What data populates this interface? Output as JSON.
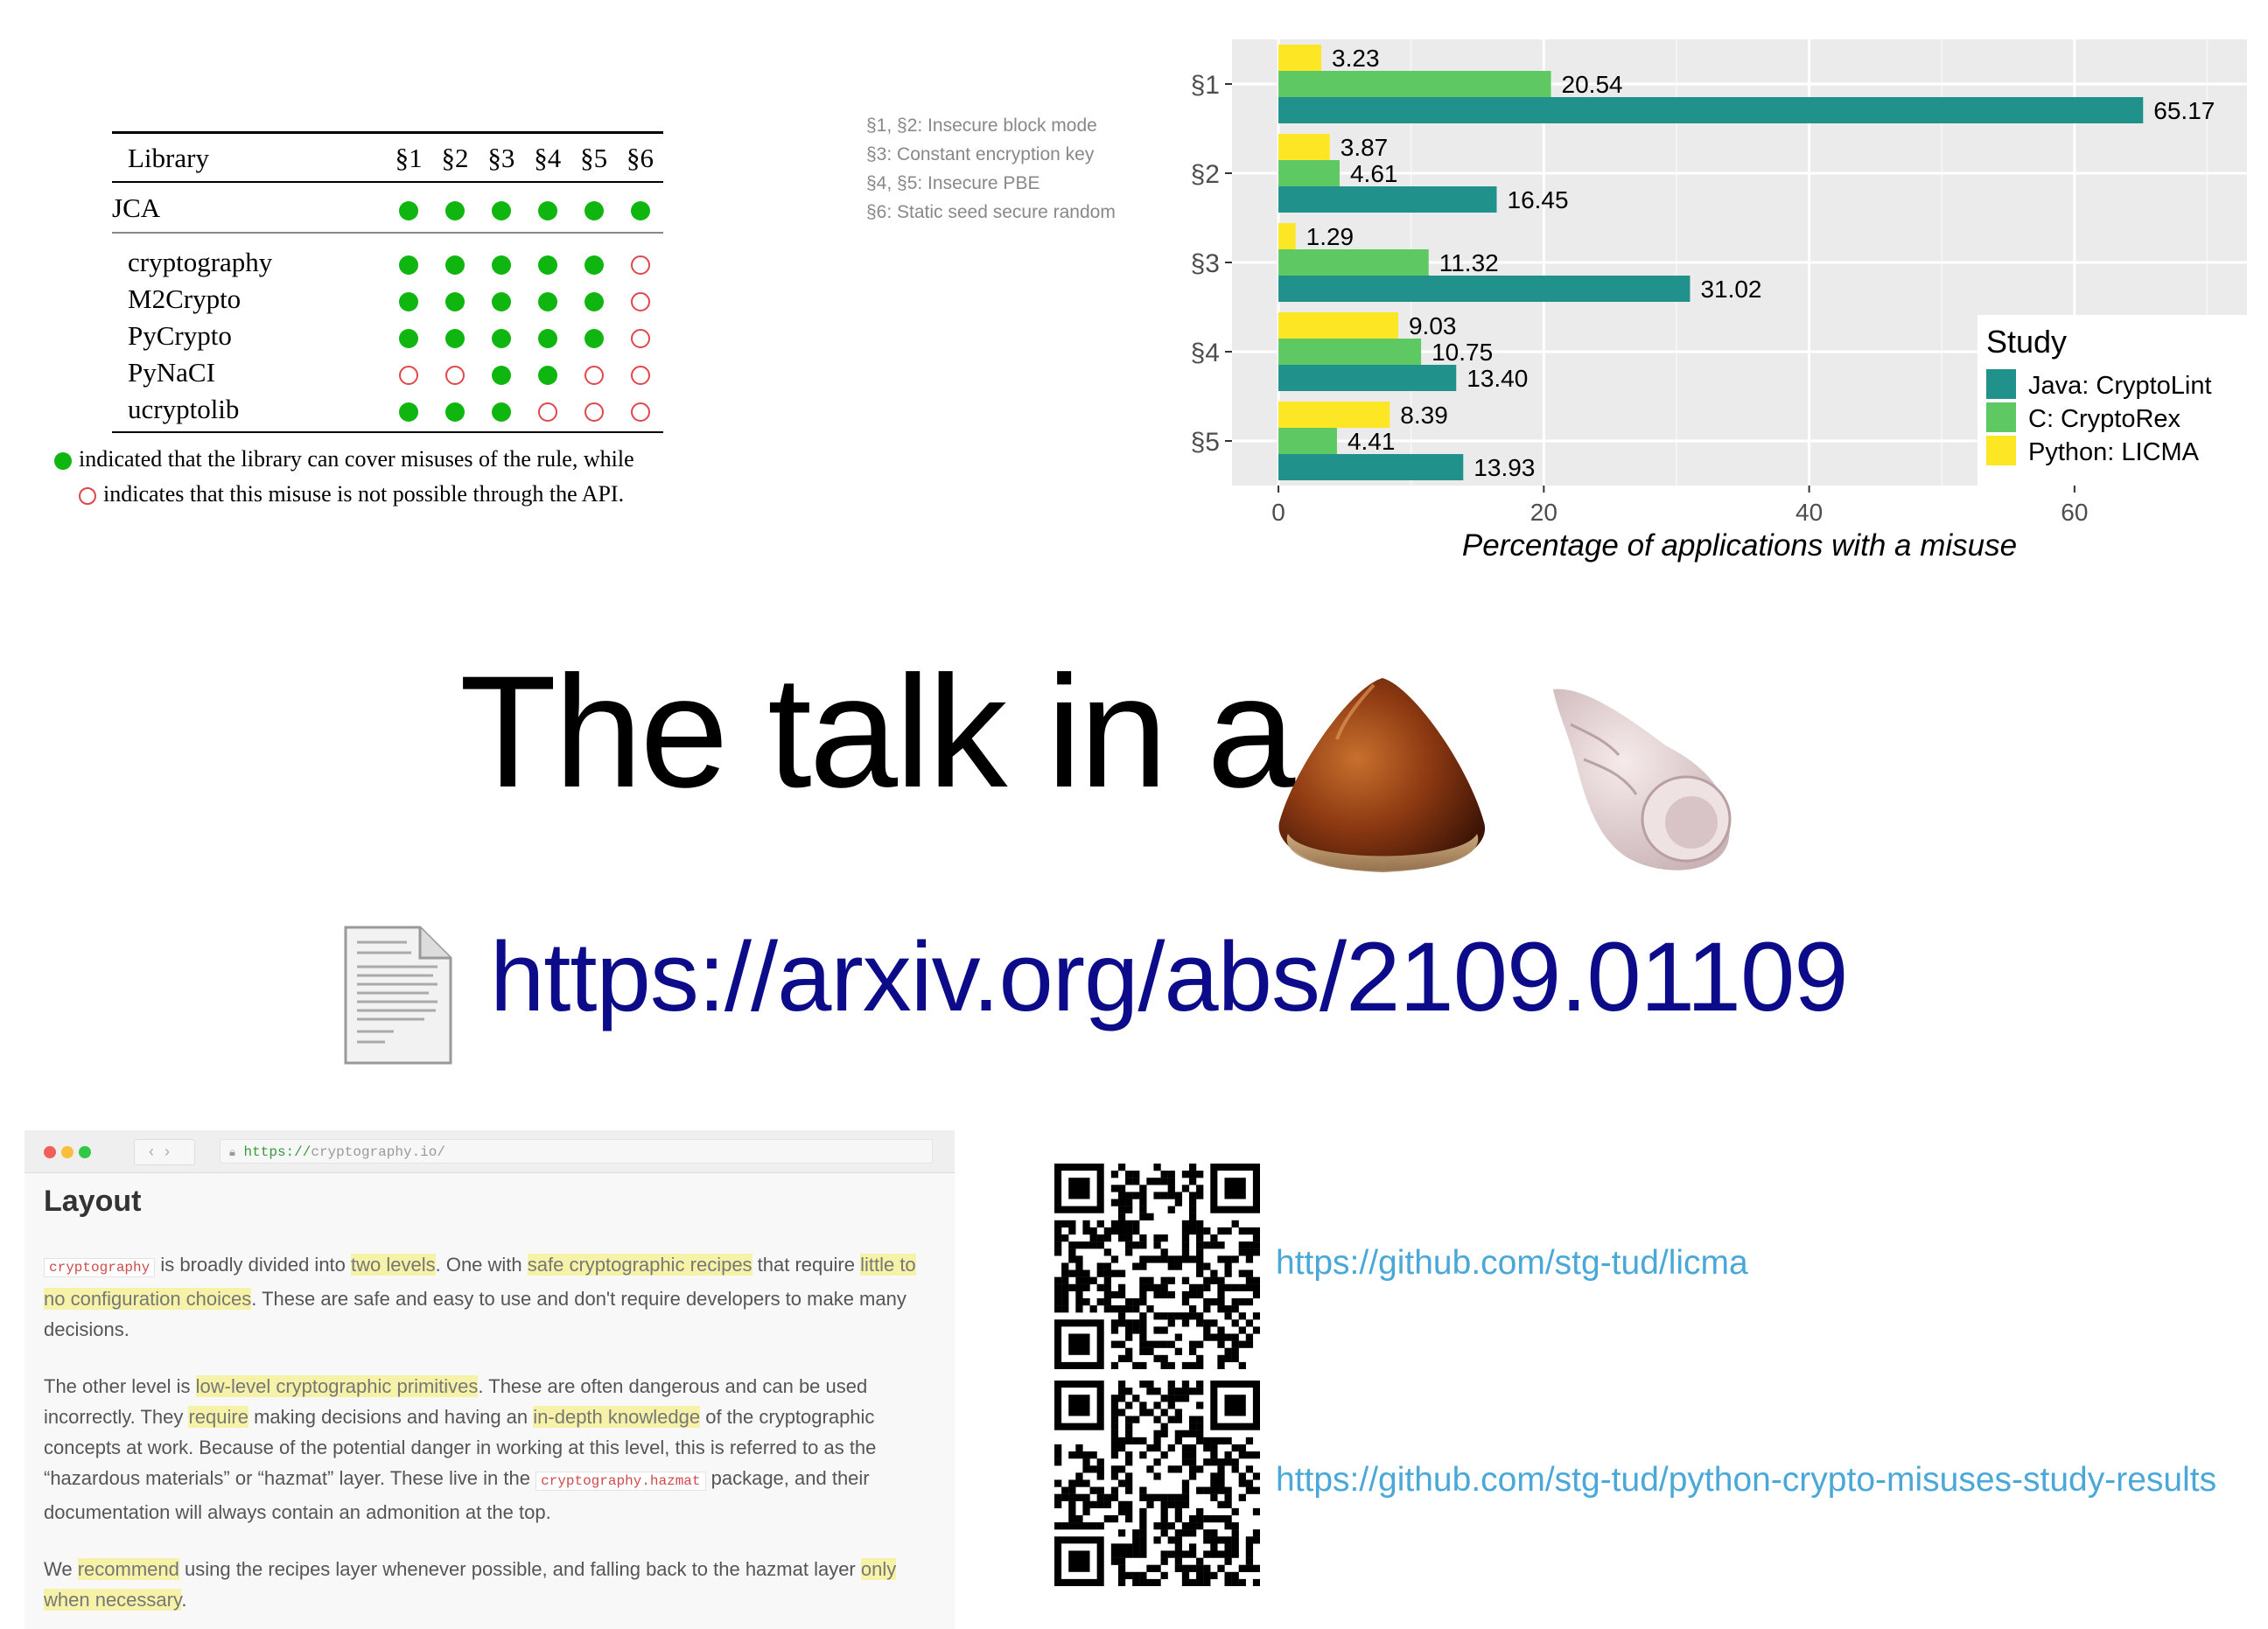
{
  "library_table": {
    "headers": [
      "Library",
      "§1",
      "§2",
      "§3",
      "§4",
      "§5",
      "§6"
    ],
    "rows": [
      {
        "name": "JCA",
        "cells": [
          true,
          true,
          true,
          true,
          true,
          true
        ]
      },
      {
        "name": "cryptography",
        "cells": [
          true,
          true,
          true,
          true,
          true,
          false
        ]
      },
      {
        "name": "M2Crypto",
        "cells": [
          true,
          true,
          true,
          true,
          true,
          false
        ]
      },
      {
        "name": "PyCrypto",
        "cells": [
          true,
          true,
          true,
          true,
          true,
          false
        ]
      },
      {
        "name": "PyNaCI",
        "cells": [
          false,
          false,
          true,
          true,
          false,
          false
        ]
      },
      {
        "name": "ucryptolib",
        "cells": [
          true,
          true,
          true,
          false,
          false,
          false
        ]
      }
    ],
    "legend_filled": "indicated that the library can cover misuses of the rule, while",
    "legend_empty": "indicates that this misuse is not possible through the API.",
    "colors": {
      "filled": "#0fb60f",
      "empty": "#e0474c"
    }
  },
  "rule_notes": [
    "§1, §2: Insecure block mode",
    "§3: Constant encryption key",
    "§4, §5: Insecure PBE",
    "§6: Static seed secure random"
  ],
  "chart_data": {
    "type": "bar",
    "orientation": "horizontal",
    "categories": [
      "§1",
      "§2",
      "§3",
      "§4",
      "§5"
    ],
    "series": [
      {
        "name": "Python: LICMA",
        "color": "#fde725",
        "values": [
          3.23,
          3.87,
          1.29,
          9.03,
          8.39
        ]
      },
      {
        "name": "C: CryptoRex",
        "color": "#5ec962",
        "values": [
          20.54,
          4.61,
          11.32,
          10.75,
          4.41
        ]
      },
      {
        "name": "Java: CryptoLint",
        "color": "#21918c",
        "values": [
          65.17,
          16.45,
          31.02,
          13.4,
          13.93
        ]
      }
    ],
    "xlabel": "Percentage of applications with a misuse",
    "xlim": [
      -3.5,
      73
    ],
    "xticks": [
      0,
      20,
      40,
      60
    ],
    "legend_title": "Study",
    "legend_order": [
      "Java: CryptoLint",
      "C: CryptoRex",
      "Python: LICMA"
    ],
    "legend_position": "bottom-right inside",
    "grid": true,
    "background": "#ebebeb"
  },
  "title": "The talk in a",
  "title_icons": [
    "chestnut-icon",
    "shell-icon"
  ],
  "arxiv_link": "https://arxiv.org/abs/2109.01109",
  "browser": {
    "url_scheme": "https://",
    "url_rest": "cryptography.io/",
    "heading": "Layout",
    "p1": {
      "code": "cryptography",
      "t1": " is broadly divided into ",
      "h1": "two levels",
      "t2": ". One with ",
      "h2": "safe cryptographic recipes",
      "t3": " that require ",
      "h3": "little to no configuration choices",
      "t4": ". These are safe and easy to use and don't require developers to make many decisions."
    },
    "p2": {
      "t1": "The other level is ",
      "h1": "low-level cryptographic primitives",
      "t2": ". These are often dangerous and can be used incorrectly. They ",
      "h2": "require",
      "t3": " making decisions and having an ",
      "h3": "in-depth knowledge",
      "t4": " of the cryptographic concepts at work. Because of the potential danger in working at this level, this is referred to as the “hazardous materials” or “hazmat” layer. These live in the ",
      "code": "cryptography.hazmat",
      "t5": " package, and their documentation will always contain an admonition at the top."
    },
    "p3": {
      "t1": "We ",
      "h1": "recommend",
      "t2": " using the recipes layer whenever possible, and falling back to the hazmat layer ",
      "h2": "only when necessary",
      "t3": "."
    }
  },
  "links": [
    "https://github.com/stg-tud/licma",
    "https://github.com/stg-tud/python-crypto-misuses-study-results"
  ]
}
